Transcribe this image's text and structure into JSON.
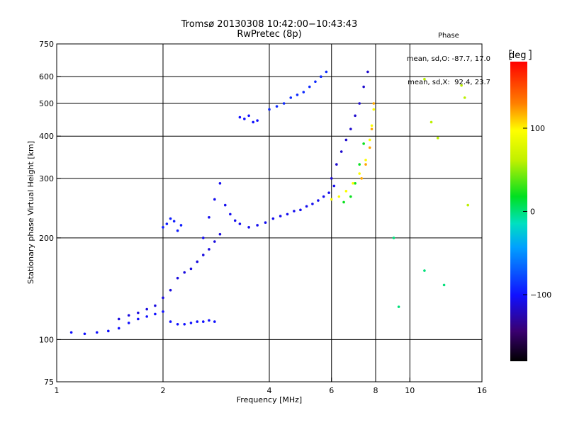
{
  "title": {
    "line1": "Tromsø 20130308 10:42:00−10:43:43",
    "line2": "RwPretec (8p)"
  },
  "phase_box": {
    "heading": "Phase",
    "line_o": "mean, sd,O: -87.7, 17.0",
    "line_x": "mean, sd,X:  92.4, 23.7"
  },
  "colorbar": {
    "unit": "deg",
    "ticks": [
      {
        "label": "100",
        "value": 100
      },
      {
        "label": "0",
        "value": 0
      },
      {
        "label": "−100",
        "value": -100
      }
    ],
    "range": [
      -180,
      180
    ]
  },
  "chart_data": {
    "type": "scatter",
    "xlabel": "Frequency [MHz]",
    "ylabel": "Stationary phase Virtual Height [km]",
    "xscale": "log",
    "yscale": "log",
    "xlim": [
      1,
      16
    ],
    "ylim": [
      75,
      750
    ],
    "xticks": [
      {
        "label": "1",
        "value": 1
      },
      {
        "label": "2",
        "value": 2
      },
      {
        "label": "4",
        "value": 4
      },
      {
        "label": "6",
        "value": 6
      },
      {
        "label": "8",
        "value": 8
      },
      {
        "label": "10",
        "value": 10
      },
      {
        "label": "16",
        "value": 16
      }
    ],
    "yticks": [
      {
        "label": "75",
        "value": 75
      },
      {
        "label": "100",
        "value": 100
      },
      {
        "label": "200",
        "value": 200
      },
      {
        "label": "300",
        "value": 300
      },
      {
        "label": "400",
        "value": 400
      },
      {
        "label": "500",
        "value": 500
      },
      {
        "label": "600",
        "value": 600
      },
      {
        "label": "750",
        "value": 750
      }
    ],
    "grid_x": [
      2,
      4,
      6,
      8,
      10
    ],
    "grid_y": [
      100,
      200,
      300,
      400,
      500,
      600
    ],
    "series": [
      {
        "phase_deg": -100,
        "x": [
          1.1,
          1.2,
          1.3,
          1.4,
          1.5,
          1.6,
          1.7,
          1.8,
          1.9,
          2.0,
          2.1,
          2.2,
          2.3,
          2.4,
          2.5,
          2.6,
          2.7,
          2.8
        ],
        "y": [
          105,
          104,
          105,
          106,
          108,
          112,
          115,
          117,
          119,
          121,
          113,
          111,
          111,
          112,
          113,
          113,
          114,
          113
        ]
      },
      {
        "phase_deg": -110,
        "x": [
          1.5,
          1.6,
          1.7,
          1.8,
          1.9,
          2.0,
          2.1,
          2.2,
          2.3,
          2.4,
          2.5,
          2.6,
          2.7,
          2.8,
          2.9
        ],
        "y": [
          115,
          118,
          120,
          123,
          126,
          133,
          140,
          152,
          158,
          162,
          170,
          178,
          185,
          195,
          205
        ]
      },
      {
        "phase_deg": -95,
        "x": [
          2.0,
          2.05,
          2.1,
          2.15,
          2.2,
          2.25
        ],
        "y": [
          215,
          220,
          228,
          224,
          210,
          218
        ]
      },
      {
        "phase_deg": -105,
        "x": [
          2.6,
          2.7,
          2.8,
          2.9,
          3.0,
          3.1,
          3.2,
          3.3,
          3.5,
          3.7,
          3.9,
          4.1,
          4.3,
          4.5,
          4.7,
          4.9,
          5.1,
          5.3,
          5.5,
          5.7,
          5.9,
          6.1
        ],
        "y": [
          200,
          230,
          260,
          290,
          250,
          235,
          225,
          220,
          215,
          218,
          222,
          228,
          232,
          235,
          240,
          242,
          248,
          252,
          258,
          265,
          272,
          285
        ]
      },
      {
        "phase_deg": -115,
        "x": [
          6.0,
          6.2,
          6.4,
          6.6,
          6.8,
          7.0,
          7.2,
          7.4,
          7.6
        ],
        "y": [
          300,
          330,
          360,
          390,
          420,
          460,
          500,
          560,
          620
        ]
      },
      {
        "phase_deg": 20,
        "x": [
          6.5,
          6.8,
          7.0,
          7.2,
          7.4
        ],
        "y": [
          255,
          265,
          290,
          330,
          380
        ]
      },
      {
        "phase_deg": 95,
        "x": [
          6.0,
          6.3,
          6.6,
          6.9,
          7.2,
          7.5,
          7.7,
          7.8,
          7.9
        ],
        "y": [
          260,
          265,
          275,
          290,
          310,
          340,
          390,
          430,
          480
        ]
      },
      {
        "phase_deg": 120,
        "x": [
          7.3,
          7.5,
          7.7,
          7.8,
          7.9
        ],
        "y": [
          300,
          330,
          370,
          420,
          500
        ]
      },
      {
        "phase_deg": -100,
        "x": [
          3.3,
          3.4,
          3.5,
          3.6,
          3.7
        ],
        "y": [
          455,
          450,
          460,
          440,
          445
        ]
      },
      {
        "phase_deg": -90,
        "x": [
          4.0,
          4.2,
          4.4,
          4.6,
          4.8,
          5.0,
          5.2,
          5.4,
          5.6,
          5.8
        ],
        "y": [
          480,
          490,
          500,
          520,
          530,
          540,
          560,
          580,
          600,
          620
        ]
      },
      {
        "phase_deg": 60,
        "x": [
          11.0,
          11.5,
          12.0,
          14.0,
          14.3,
          14.6
        ],
        "y": [
          590,
          440,
          395,
          565,
          520,
          250
        ]
      },
      {
        "phase_deg": 0,
        "x": [
          9.0,
          9.3,
          11.0,
          12.5
        ],
        "y": [
          200,
          125,
          160,
          145
        ]
      }
    ]
  }
}
